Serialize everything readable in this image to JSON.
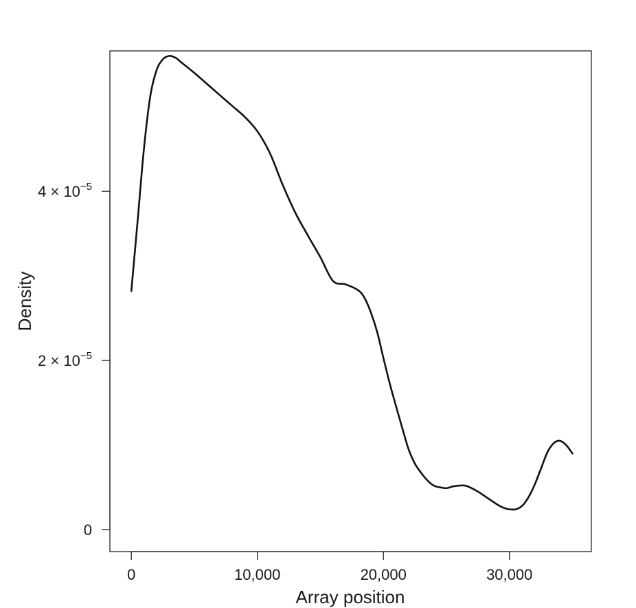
{
  "chart_data": {
    "type": "line",
    "title": "",
    "xlabel": "Array position",
    "ylabel": "Density",
    "xlim": [
      -1700,
      36500
    ],
    "ylim": [
      -2.6e-06,
      5.66e-05
    ],
    "grid": false,
    "x_ticks": [
      {
        "value": 0,
        "label": "0"
      },
      {
        "value": 10000,
        "label": "10,000"
      },
      {
        "value": 20000,
        "label": "20,000"
      },
      {
        "value": 30000,
        "label": "30,000"
      }
    ],
    "y_ticks": [
      {
        "value": 0,
        "label": "0",
        "mantissa": "",
        "exponent": ""
      },
      {
        "value": 2e-05,
        "label": "2 × 10^-5",
        "mantissa": "2 × 10",
        "exponent": "−5"
      },
      {
        "value": 4e-05,
        "label": "4 × 10^-5",
        "mantissa": "4 × 10",
        "exponent": "−5"
      }
    ],
    "series": [
      {
        "color": "#111111",
        "x": [
          0,
          500,
          1000,
          1500,
          2000,
          2500,
          3000,
          3500,
          4000,
          5000,
          6000,
          7000,
          8000,
          9000,
          10000,
          11000,
          12000,
          13000,
          14000,
          15000,
          16000,
          17000,
          18000,
          18500,
          19000,
          19500,
          20000,
          20500,
          21000,
          21500,
          22000,
          22500,
          23000,
          23500,
          24000,
          24500,
          25000,
          25500,
          26000,
          26500,
          27000,
          27500,
          28000,
          28500,
          29000,
          29500,
          30000,
          30500,
          31000,
          31500,
          32000,
          32500,
          33000,
          33500,
          34000,
          34500,
          35000
        ],
        "y": [
          2.82e-05,
          3.65e-05,
          4.5e-05,
          5.12e-05,
          5.43e-05,
          5.56e-05,
          5.6e-05,
          5.58e-05,
          5.52e-05,
          5.4e-05,
          5.27e-05,
          5.14e-05,
          5.01e-05,
          4.88e-05,
          4.71e-05,
          4.45e-05,
          4.08e-05,
          3.75e-05,
          3.48e-05,
          3.22e-05,
          2.94e-05,
          2.9e-05,
          2.83e-05,
          2.74e-05,
          2.57e-05,
          2.34e-05,
          2.03e-05,
          1.73e-05,
          1.46e-05,
          1.2e-05,
          9.5e-06,
          7.8e-06,
          6.7e-06,
          5.8e-06,
          5.2e-06,
          5e-06,
          4.9e-06,
          5.1e-06,
          5.2e-06,
          5.2e-06,
          4.9e-06,
          4.5e-06,
          4e-06,
          3.5e-06,
          3e-06,
          2.6e-06,
          2.4e-06,
          2.4e-06,
          2.8e-06,
          3.8e-06,
          5.3e-06,
          7.2e-06,
          9.1e-06,
          1.02e-05,
          1.05e-05,
          1e-05,
          9e-06
        ]
      }
    ]
  }
}
